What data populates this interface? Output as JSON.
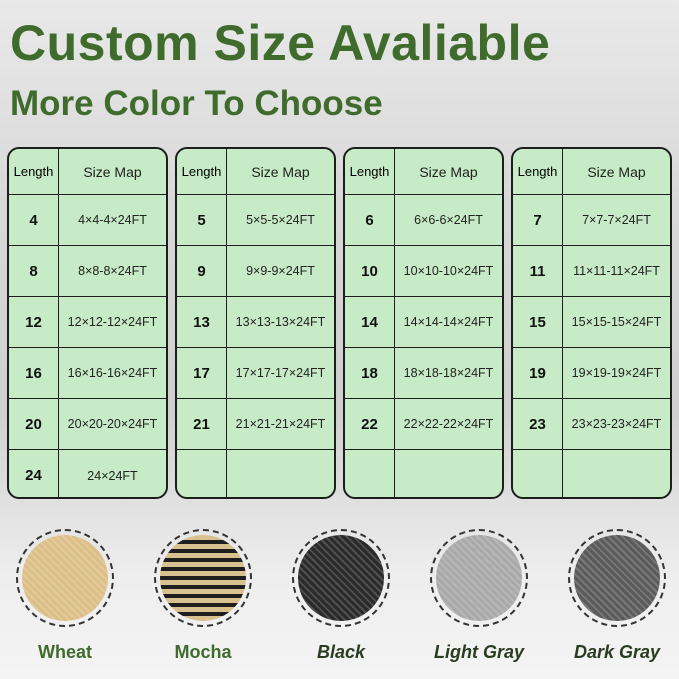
{
  "title": "Custom Size Avaliable",
  "subtitle": "More Color To Choose",
  "tables": [
    {
      "header": {
        "length": "Length",
        "size": "Size Map"
      },
      "rows": [
        {
          "length": "4",
          "size": "4×4-4×24FT"
        },
        {
          "length": "8",
          "size": "8×8-8×24FT"
        },
        {
          "length": "12",
          "size": "12×12-12×24FT"
        },
        {
          "length": "16",
          "size": "16×16-16×24FT"
        },
        {
          "length": "20",
          "size": "20×20-20×24FT"
        },
        {
          "length": "24",
          "size": "24×24FT"
        }
      ]
    },
    {
      "header": {
        "length": "Length",
        "size": "Size Map"
      },
      "rows": [
        {
          "length": "5",
          "size": "5×5-5×24FT"
        },
        {
          "length": "9",
          "size": "9×9-9×24FT"
        },
        {
          "length": "13",
          "size": "13×13-13×24FT"
        },
        {
          "length": "17",
          "size": "17×17-17×24FT"
        },
        {
          "length": "21",
          "size": "21×21-21×24FT"
        },
        {
          "length": "",
          "size": ""
        }
      ]
    },
    {
      "header": {
        "length": "Length",
        "size": "Size Map"
      },
      "rows": [
        {
          "length": "6",
          "size": "6×6-6×24FT"
        },
        {
          "length": "10",
          "size": "10×10-10×24FT"
        },
        {
          "length": "14",
          "size": "14×14-14×24FT"
        },
        {
          "length": "18",
          "size": "18×18-18×24FT"
        },
        {
          "length": "22",
          "size": "22×22-22×24FT"
        },
        {
          "length": "",
          "size": ""
        }
      ]
    },
    {
      "header": {
        "length": "Length",
        "size": "Size Map"
      },
      "rows": [
        {
          "length": "7",
          "size": "7×7-7×24FT"
        },
        {
          "length": "11",
          "size": "11×11-11×24FT"
        },
        {
          "length": "15",
          "size": "15×15-15×24FT"
        },
        {
          "length": "19",
          "size": "19×19-19×24FT"
        },
        {
          "length": "23",
          "size": "23×23-23×24FT"
        },
        {
          "length": "",
          "size": ""
        }
      ]
    }
  ],
  "colors": [
    {
      "name": "Wheat",
      "swatch": "#dcbf87",
      "italic": false
    },
    {
      "name": "Mocha",
      "swatch": "#8a7350",
      "italic": false
    },
    {
      "name": "Black",
      "swatch": "#2a2a2a",
      "italic": true
    },
    {
      "name": "Light Gray",
      "swatch": "#a9a9a9",
      "italic": true
    },
    {
      "name": "Dark Gray",
      "swatch": "#5b5b5b",
      "italic": true
    }
  ]
}
